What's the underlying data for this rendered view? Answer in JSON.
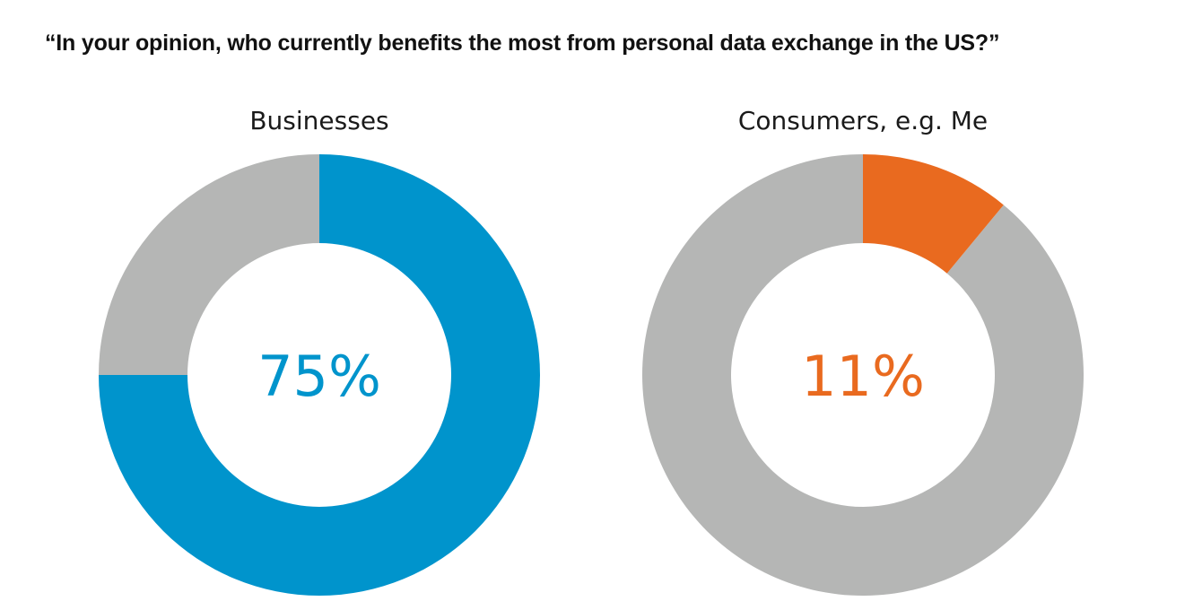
{
  "title": "“In your opinion, who currently benefits the most from personal data exchange in the US?”",
  "colors": {
    "remainder": "#b5b6b5",
    "businesses": "#0094cc",
    "consumers": "#e96a1f"
  },
  "chart_data": [
    {
      "type": "pie",
      "label": "Businesses",
      "value": 75,
      "total": 100,
      "display": "75%",
      "color": "#0094cc",
      "remainder_color": "#b5b6b5"
    },
    {
      "type": "pie",
      "label": "Consumers, e.g. Me",
      "value": 11,
      "total": 100,
      "display": "11%",
      "color": "#e96a1f",
      "remainder_color": "#b5b6b5"
    }
  ]
}
